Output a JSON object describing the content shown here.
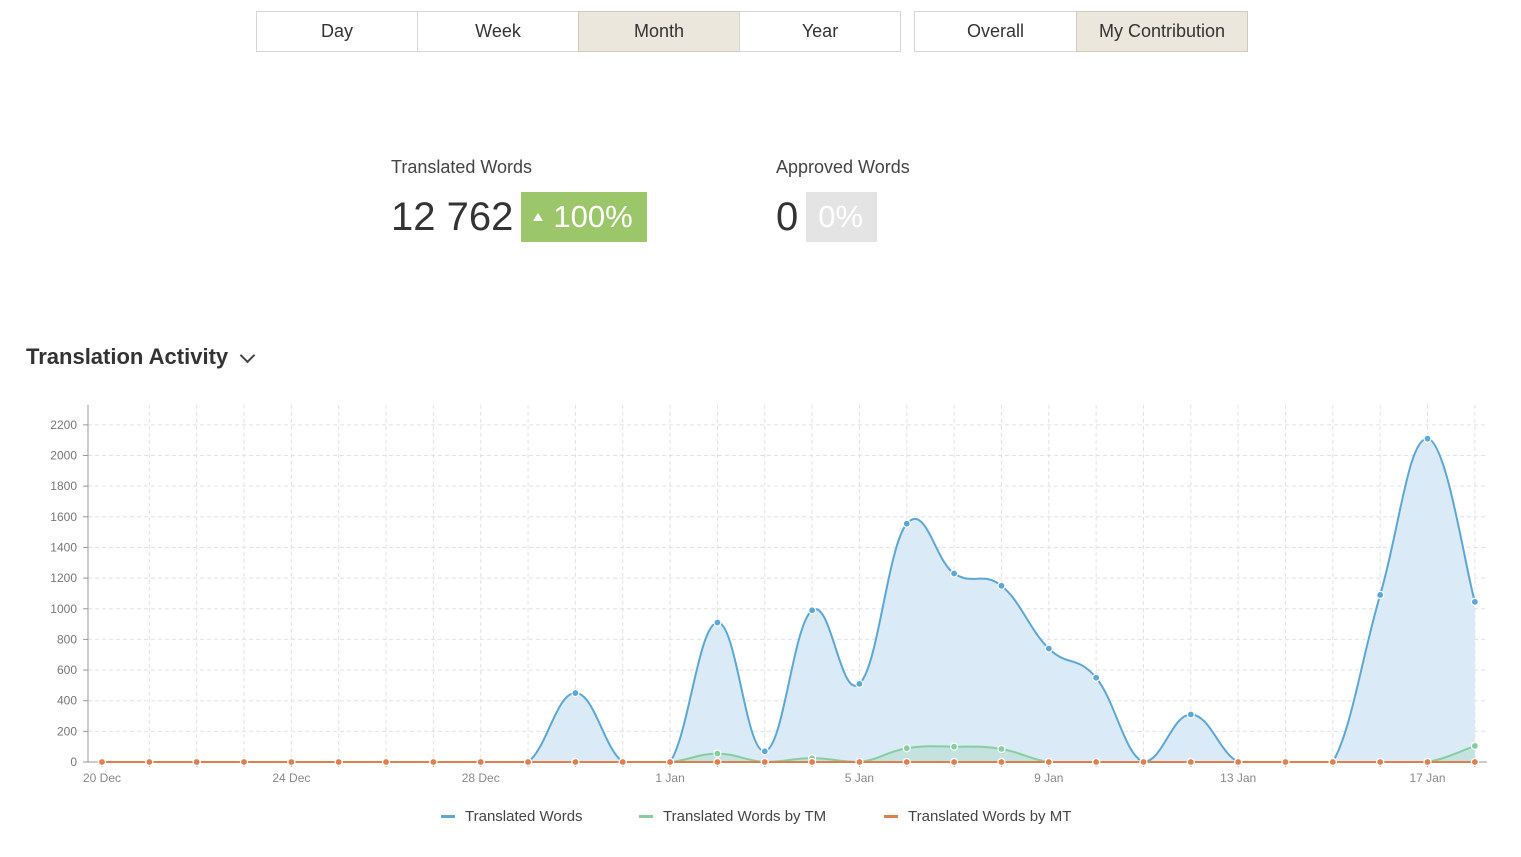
{
  "periods": [
    "Day",
    "Week",
    "Month",
    "Year"
  ],
  "active_period": "Month",
  "scopes": [
    "Overall",
    "My Contribution"
  ],
  "active_scope": "My Contribution",
  "metrics": {
    "translated": {
      "label": "Translated Words",
      "value": "12 762",
      "change": "100%"
    },
    "approved": {
      "label": "Approved Words",
      "value": "0",
      "change": "0%"
    }
  },
  "section_title": "Translation Activity",
  "colors": {
    "translated": "#5aa7d8",
    "tm": "#85cf9f",
    "mt": "#e07f4e",
    "area": "#daeaf6",
    "badge_green": "#9cc66a",
    "badge_gray": "#e4e4e4"
  },
  "chart_data": {
    "type": "area",
    "x": [
      "20 Dec",
      "21 Dec",
      "22 Dec",
      "23 Dec",
      "24 Dec",
      "25 Dec",
      "26 Dec",
      "27 Dec",
      "28 Dec",
      "29 Dec",
      "30 Dec",
      "31 Dec",
      "1 Jan",
      "2 Jan",
      "3 Jan",
      "4 Jan",
      "5 Jan",
      "6 Jan",
      "7 Jan",
      "8 Jan",
      "9 Jan",
      "10 Jan",
      "11 Jan",
      "12 Jan",
      "13 Jan",
      "14 Jan",
      "15 Jan",
      "16 Jan",
      "17 Jan",
      "18 Jan"
    ],
    "x_tick_labels": [
      "20 Dec",
      "24 Dec",
      "28 Dec",
      "1 Jan",
      "5 Jan",
      "9 Jan",
      "13 Jan",
      "17 Jan"
    ],
    "y_ticks": [
      0,
      200,
      400,
      600,
      800,
      1000,
      1200,
      1400,
      1600,
      1800,
      2000,
      2200
    ],
    "ylim": [
      0,
      2300
    ],
    "grid": true,
    "legend_position": "bottom",
    "series": [
      {
        "name": "Translated Words",
        "values": [
          0,
          0,
          0,
          0,
          0,
          0,
          0,
          0,
          0,
          0,
          450,
          0,
          0,
          910,
          70,
          990,
          510,
          1555,
          1230,
          1150,
          740,
          550,
          0,
          310,
          0,
          0,
          0,
          1090,
          2110,
          1045
        ]
      },
      {
        "name": "Translated Words by TM",
        "values": [
          0,
          0,
          0,
          0,
          0,
          0,
          0,
          0,
          0,
          0,
          0,
          0,
          0,
          55,
          0,
          25,
          0,
          90,
          100,
          85,
          0,
          0,
          0,
          0,
          0,
          0,
          0,
          0,
          0,
          105
        ]
      },
      {
        "name": "Translated Words by MT",
        "values": [
          0,
          0,
          0,
          0,
          0,
          0,
          0,
          0,
          0,
          0,
          0,
          0,
          0,
          0,
          0,
          0,
          0,
          0,
          0,
          0,
          0,
          0,
          0,
          0,
          0,
          0,
          0,
          0,
          0,
          0
        ]
      }
    ]
  }
}
